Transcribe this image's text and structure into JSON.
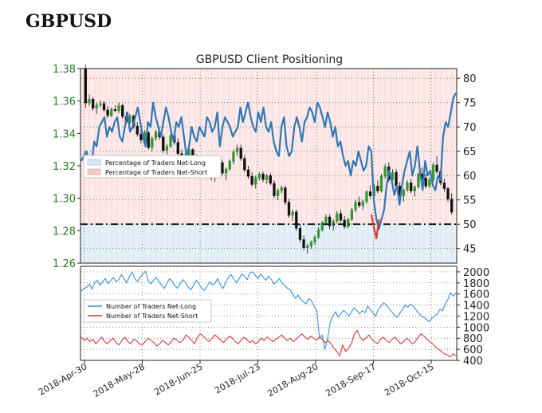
{
  "page": {
    "title": "GBPUSD"
  },
  "chart_data": [
    {
      "type": "candlestick-line",
      "title": "GBPUSD Client Positioning",
      "price_axis": {
        "ticks": [
          "1.38",
          "1.36",
          "1.34",
          "1.32",
          "1.30",
          "1.28",
          "1.26"
        ],
        "ylim": [
          1.26,
          1.38
        ]
      },
      "percent_axis": {
        "ticks": [
          "80",
          "75",
          "70",
          "65",
          "60",
          "55",
          "50",
          "45"
        ],
        "ylim": [
          42,
          82
        ]
      },
      "x_ticks": [
        "2018-Apr-30",
        "2018-May-28",
        "2018-Jun-25",
        "2018-Jul-23",
        "2018-Aug-20",
        "2018-Sep-17",
        "2018-Oct-15"
      ],
      "legend": {
        "position": "left",
        "entries": [
          "Percentage of Traders Net-Long",
          "Percentage of Traders Net-Short"
        ]
      },
      "reference_line": 50,
      "series": [
        {
          "name": "Percentage of Traders Net-Long",
          "values": [
            63,
            64,
            65,
            63,
            62,
            67,
            66,
            70,
            71,
            72,
            68,
            70,
            69,
            71,
            72,
            68,
            67,
            70,
            73,
            69,
            70,
            72,
            74,
            71,
            68,
            66,
            71,
            70,
            75,
            72,
            70,
            68,
            71,
            74,
            72,
            69,
            67,
            71,
            70,
            72,
            68,
            64,
            66,
            70,
            68,
            67,
            70,
            69,
            68,
            72,
            71,
            69,
            70,
            73,
            66,
            70,
            72,
            71,
            70,
            68,
            69,
            70,
            74,
            71,
            73,
            75,
            72,
            70,
            69,
            73,
            71,
            74,
            70,
            69,
            71,
            67,
            65,
            64,
            70,
            72,
            66,
            64,
            65,
            70,
            72,
            70,
            67,
            71,
            72,
            74,
            73,
            71,
            75,
            74,
            72,
            70,
            73,
            71,
            68,
            70,
            66,
            67,
            64,
            62,
            63,
            60,
            63,
            62,
            65,
            63,
            61,
            62,
            66,
            65,
            55,
            51,
            49,
            51,
            53,
            58,
            61,
            59,
            56,
            58,
            54,
            58,
            61,
            63,
            65,
            60,
            62,
            66,
            61,
            57,
            63,
            60,
            61,
            58,
            57,
            60,
            59,
            68,
            71,
            70,
            73,
            76,
            77
          ]
        }
      ],
      "candles": [
        [
          1.38,
          1.3822,
          1.356,
          1.3588
        ],
        [
          1.3588,
          1.364,
          1.357,
          1.3612
        ],
        [
          1.3612,
          1.3625,
          1.354,
          1.3555
        ],
        [
          1.3555,
          1.359,
          1.352,
          1.3575
        ],
        [
          1.3575,
          1.3605,
          1.356,
          1.3584
        ],
        [
          1.3584,
          1.36,
          1.353,
          1.3545
        ],
        [
          1.3545,
          1.357,
          1.3495,
          1.351
        ],
        [
          1.351,
          1.356,
          1.35,
          1.3548
        ],
        [
          1.3548,
          1.3575,
          1.353,
          1.354
        ],
        [
          1.354,
          1.359,
          1.3525,
          1.3572
        ],
        [
          1.3572,
          1.3585,
          1.349,
          1.3505
        ],
        [
          1.3505,
          1.353,
          1.346,
          1.347
        ],
        [
          1.347,
          1.352,
          1.3455,
          1.3508
        ],
        [
          1.3508,
          1.3515,
          1.343,
          1.3445
        ],
        [
          1.3445,
          1.347,
          1.338,
          1.3395
        ],
        [
          1.3395,
          1.343,
          1.334,
          1.336
        ],
        [
          1.336,
          1.342,
          1.335,
          1.3405
        ],
        [
          1.3405,
          1.3415,
          1.33,
          1.3312
        ],
        [
          1.3312,
          1.338,
          1.329,
          1.337
        ],
        [
          1.337,
          1.342,
          1.3355,
          1.341
        ],
        [
          1.341,
          1.344,
          1.336,
          1.3378
        ],
        [
          1.3378,
          1.3395,
          1.328,
          1.3295
        ],
        [
          1.3295,
          1.3335,
          1.327,
          1.332
        ],
        [
          1.332,
          1.3395,
          1.331,
          1.3385
        ],
        [
          1.3385,
          1.341,
          1.333,
          1.3345
        ],
        [
          1.3345,
          1.337,
          1.326,
          1.3275
        ],
        [
          1.3275,
          1.33,
          1.321,
          1.3225
        ],
        [
          1.3225,
          1.328,
          1.3205,
          1.3268
        ],
        [
          1.3268,
          1.332,
          1.325,
          1.33
        ],
        [
          1.33,
          1.331,
          1.323,
          1.3245
        ],
        [
          1.3245,
          1.327,
          1.317,
          1.3185
        ],
        [
          1.3185,
          1.323,
          1.315,
          1.3215
        ],
        [
          1.3215,
          1.325,
          1.3195,
          1.324
        ],
        [
          1.324,
          1.326,
          1.316,
          1.3175
        ],
        [
          1.3175,
          1.32,
          1.311,
          1.3125
        ],
        [
          1.3125,
          1.318,
          1.31,
          1.3165
        ],
        [
          1.3165,
          1.323,
          1.315,
          1.322
        ],
        [
          1.322,
          1.3235,
          1.314,
          1.3155
        ],
        [
          1.3155,
          1.319,
          1.311,
          1.318
        ],
        [
          1.318,
          1.324,
          1.317,
          1.3228
        ],
        [
          1.3228,
          1.33,
          1.321,
          1.3285
        ],
        [
          1.3285,
          1.333,
          1.326,
          1.331
        ],
        [
          1.331,
          1.333,
          1.323,
          1.3245
        ],
        [
          1.3245,
          1.3265,
          1.316,
          1.3175
        ],
        [
          1.3175,
          1.32,
          1.312,
          1.3135
        ],
        [
          1.3135,
          1.316,
          1.307,
          1.3085
        ],
        [
          1.3085,
          1.314,
          1.306,
          1.3128
        ],
        [
          1.3128,
          1.316,
          1.311,
          1.315
        ],
        [
          1.315,
          1.3165,
          1.31,
          1.3115
        ],
        [
          1.3115,
          1.315,
          1.309,
          1.314
        ],
        [
          1.314,
          1.3155,
          1.308,
          1.3092
        ],
        [
          1.3092,
          1.311,
          1.3,
          1.3015
        ],
        [
          1.3015,
          1.306,
          1.299,
          1.3048
        ],
        [
          1.3048,
          1.308,
          1.303,
          1.3065
        ],
        [
          1.3065,
          1.3075,
          1.296,
          1.2975
        ],
        [
          1.2975,
          1.2995,
          1.288,
          1.2895
        ],
        [
          1.2895,
          1.293,
          1.286,
          1.2915
        ],
        [
          1.2915,
          1.293,
          1.28,
          1.2815
        ],
        [
          1.2815,
          1.284,
          1.273,
          1.2745
        ],
        [
          1.2745,
          1.277,
          1.268,
          1.2695
        ],
        [
          1.2695,
          1.272,
          1.266,
          1.2705
        ],
        [
          1.2705,
          1.274,
          1.269,
          1.273
        ],
        [
          1.273,
          1.277,
          1.2715,
          1.276
        ],
        [
          1.276,
          1.282,
          1.275,
          1.2805
        ],
        [
          1.2805,
          1.286,
          1.2795,
          1.285
        ],
        [
          1.285,
          1.29,
          1.283,
          1.2885
        ],
        [
          1.2885,
          1.29,
          1.281,
          1.283
        ],
        [
          1.283,
          1.287,
          1.28,
          1.2858
        ],
        [
          1.2858,
          1.292,
          1.2845,
          1.2905
        ],
        [
          1.2905,
          1.293,
          1.285,
          1.2865
        ],
        [
          1.2865,
          1.289,
          1.281,
          1.2825
        ],
        [
          1.2825,
          1.288,
          1.2815,
          1.287
        ],
        [
          1.287,
          1.294,
          1.286,
          1.293
        ],
        [
          1.293,
          1.299,
          1.2915,
          1.2975
        ],
        [
          1.2975,
          1.301,
          1.294,
          1.2955
        ],
        [
          1.2955,
          1.299,
          1.293,
          1.298
        ],
        [
          1.298,
          1.305,
          1.2965,
          1.304
        ],
        [
          1.304,
          1.308,
          1.3,
          1.3015
        ],
        [
          1.3015,
          1.309,
          1.3005,
          1.3075
        ],
        [
          1.3075,
          1.311,
          1.303,
          1.3045
        ],
        [
          1.3045,
          1.315,
          1.3035,
          1.3135
        ],
        [
          1.3135,
          1.321,
          1.312,
          1.3195
        ],
        [
          1.3195,
          1.322,
          1.31,
          1.3115
        ],
        [
          1.3115,
          1.318,
          1.3095,
          1.316
        ],
        [
          1.316,
          1.318,
          1.306,
          1.3075
        ],
        [
          1.3075,
          1.31,
          1.3,
          1.3015
        ],
        [
          1.3015,
          1.306,
          1.298,
          1.305
        ],
        [
          1.305,
          1.311,
          1.304,
          1.3095
        ],
        [
          1.3095,
          1.312,
          1.303,
          1.3045
        ],
        [
          1.3045,
          1.308,
          1.301,
          1.307
        ],
        [
          1.307,
          1.316,
          1.306,
          1.315
        ],
        [
          1.315,
          1.319,
          1.311,
          1.3125
        ],
        [
          1.3125,
          1.315,
          1.306,
          1.3075
        ],
        [
          1.3075,
          1.313,
          1.3065,
          1.3115
        ],
        [
          1.3115,
          1.322,
          1.31,
          1.3205
        ],
        [
          1.3205,
          1.326,
          1.315,
          1.3165
        ],
        [
          1.3165,
          1.318,
          1.308,
          1.3095
        ],
        [
          1.3095,
          1.312,
          1.304,
          1.306
        ],
        [
          1.306,
          1.307,
          1.298,
          1.2995
        ],
        [
          1.2995,
          1.303,
          1.29,
          1.2915
        ]
      ]
    },
    {
      "type": "line",
      "yticks": [
        "2000",
        "1800",
        "1600",
        "1400",
        "1200",
        "1000",
        "800",
        "600",
        "400"
      ],
      "ylim": [
        400,
        2100
      ],
      "legend": {
        "position": "left",
        "entries": [
          "Number of Traders Net-Long",
          "Number of Traders Net-Short"
        ]
      },
      "series": [
        {
          "name": "Number of Traders Net-Long",
          "color": "#3a8fd8",
          "values": [
            1650,
            1700,
            1720,
            1780,
            1690,
            1800,
            1850,
            1760,
            1820,
            1880,
            1790,
            1840,
            1900,
            1820,
            1860,
            1950,
            1870,
            1800,
            1920,
            2000,
            1880,
            1820,
            1900,
            1960,
            2010,
            1840,
            1780,
            1850,
            1900,
            1820,
            1760,
            1700,
            1800,
            1880,
            1820,
            1750,
            1700,
            1790,
            1860,
            1800,
            1720,
            1680,
            1760,
            1850,
            1780,
            1700,
            1660,
            1740,
            1820,
            1760,
            1800,
            1880,
            1760,
            1700,
            1820,
            1900,
            1950,
            1870,
            1800,
            1880,
            1960,
            1920,
            1860,
            1980,
            2000,
            1940,
            1880,
            1960,
            1900,
            1850,
            1920,
            1860,
            1780,
            1820,
            1880,
            1800,
            1760,
            1700,
            1680,
            1600,
            1520,
            1580,
            1500,
            1460,
            1420,
            1520,
            1480,
            1380,
            1300,
            800,
            860,
            600,
            780,
            1080,
            1200,
            1280,
            1180,
            1240,
            1300,
            1260,
            1200,
            1280,
            1350,
            1300,
            1240,
            1300,
            1260,
            1380,
            1320,
            1260,
            1200,
            1320,
            1380,
            1440,
            1400,
            1340,
            1280,
            1220,
            1180,
            1250,
            1320,
            1400,
            1360,
            1420,
            1380,
            1320,
            1260,
            1200,
            1180,
            1140,
            1100,
            1160,
            1200,
            1240,
            1320,
            1300,
            1420,
            1500,
            1620,
            1560,
            1620
          ]
        },
        {
          "name": "Number of Traders Net-Short",
          "color": "#d83a3a",
          "values": [
            820,
            760,
            800,
            740,
            780,
            700,
            760,
            820,
            740,
            700,
            760,
            800,
            720,
            680,
            760,
            820,
            740,
            700,
            780,
            760,
            700,
            680,
            740,
            800,
            760,
            720,
            660,
            700,
            760,
            720,
            680,
            740,
            800,
            760,
            720,
            760,
            860,
            820,
            760,
            700,
            820,
            880,
            840,
            780,
            740,
            800,
            860,
            820,
            760,
            720,
            780,
            840,
            800,
            740,
            700,
            760,
            820,
            780,
            720,
            760,
            700,
            740,
            800,
            760,
            820,
            780,
            740,
            780,
            820,
            860,
            800,
            760,
            800,
            740,
            780,
            840,
            880,
            820,
            780,
            840,
            800,
            760,
            820,
            780,
            720,
            760,
            700,
            620,
            560,
            480,
            680,
            560,
            620,
            700,
            880,
            940,
            820,
            760,
            800,
            860,
            780,
            740,
            700,
            780,
            820,
            760,
            720,
            780,
            820,
            760,
            700,
            740,
            800,
            760,
            700,
            740,
            820,
            880,
            840,
            780,
            740,
            700,
            640,
            600,
            560,
            520,
            500,
            460,
            520,
            480
          ]
        }
      ]
    }
  ]
}
